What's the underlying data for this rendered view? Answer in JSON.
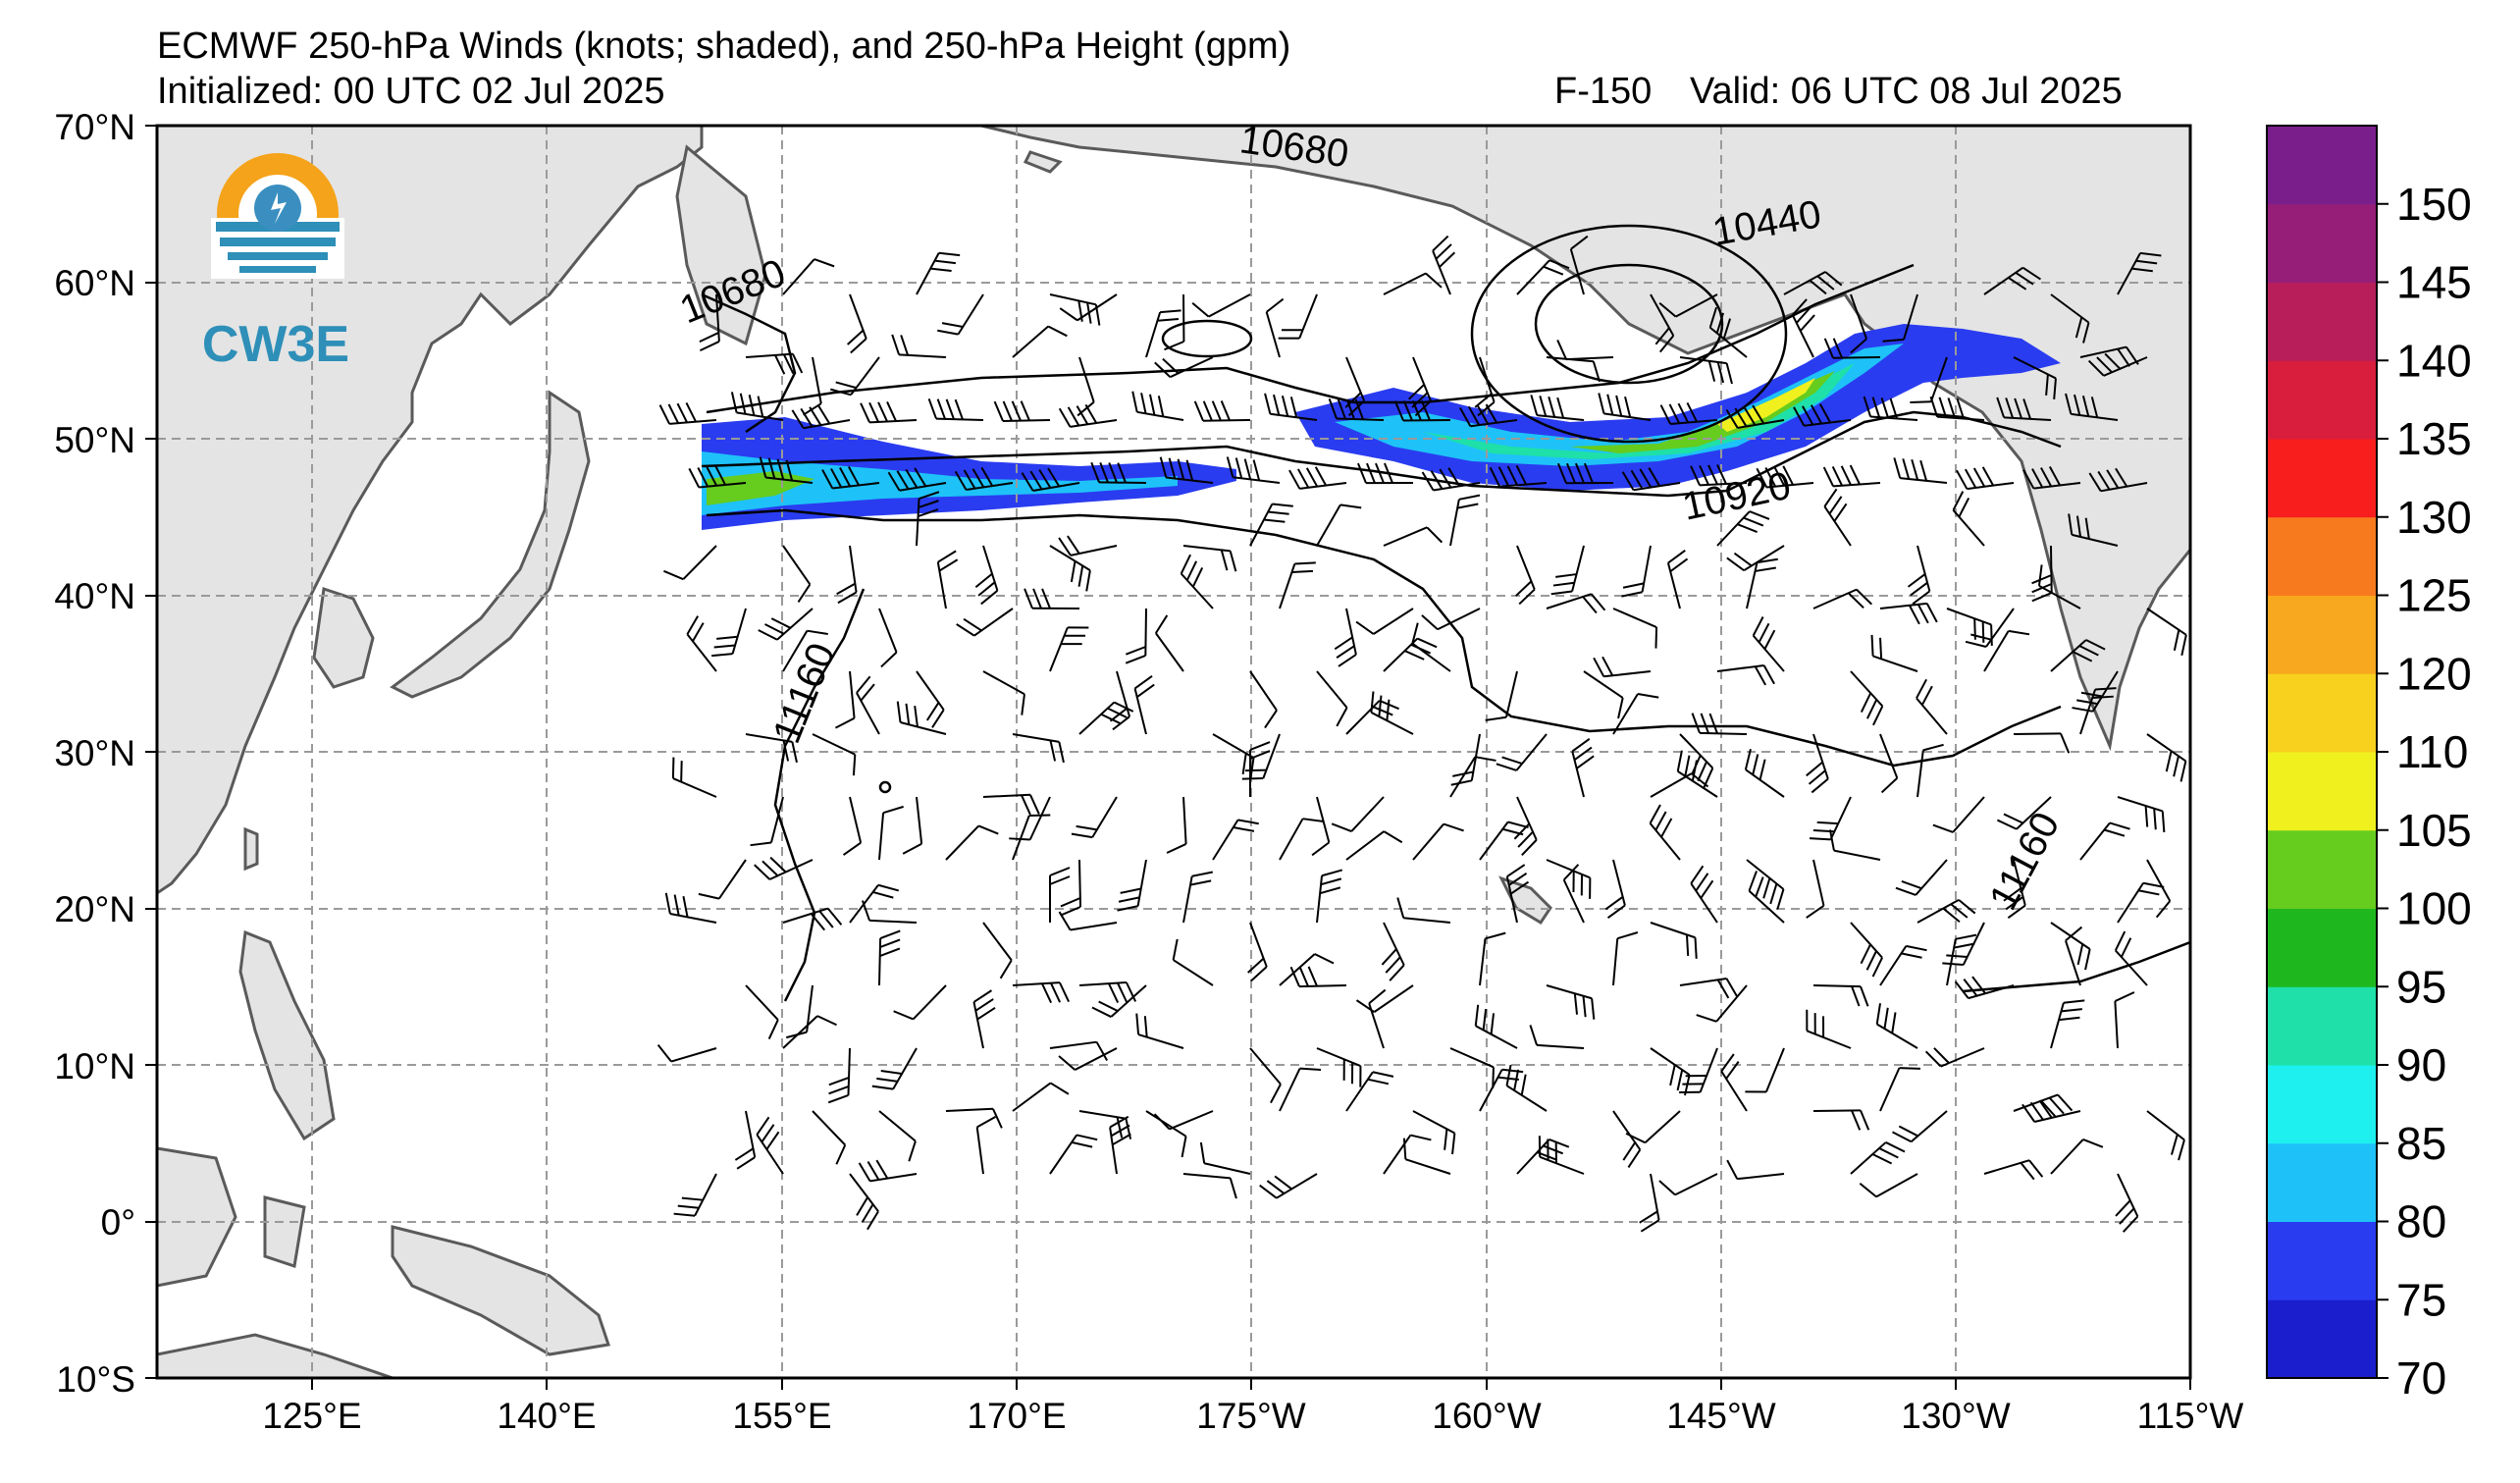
{
  "header": {
    "title": "ECMWF 250-hPa Winds (knots; shaded), and 250-hPa Height (gpm)",
    "initialized": "Initialized: 00 UTC 02 Jul 2025",
    "forecast_hour": "F-150",
    "valid": "Valid: 06 UTC 08 Jul 2025"
  },
  "logo": {
    "text": "CW3E",
    "colors": {
      "ring": "#f5a31a",
      "blue": "#3a8fc0",
      "teal": "#2e8fb8"
    }
  },
  "map": {
    "lon_labels": [
      "125°E",
      "140°E",
      "155°E",
      "170°E",
      "175°W",
      "160°W",
      "145°W",
      "130°W",
      "115°W"
    ],
    "lat_labels": [
      "70°N",
      "60°N",
      "50°N",
      "40°N",
      "30°N",
      "20°N",
      "10°N",
      "0°",
      "10°S"
    ],
    "height_contour_labels": [
      "10680",
      "10680",
      "10440",
      "10920",
      "11160",
      "11160"
    ],
    "land_color": "#e4e4e4",
    "ocean_color": "#ffffff",
    "coast_color": "#555555",
    "grid_style": "dashed gray"
  },
  "colorbar": {
    "tick_labels": [
      "70",
      "75",
      "80",
      "85",
      "90",
      "95",
      "100",
      "105",
      "110",
      "120",
      "125",
      "130",
      "135",
      "140",
      "145",
      "150"
    ],
    "colors": [
      "#1a1ecc",
      "#2a3cf0",
      "#1ec2f8",
      "#1ef0f0",
      "#1ee0a8",
      "#1eb81e",
      "#66cc1e",
      "#f0f01e",
      "#f8d01e",
      "#f8a81e",
      "#f87a1e",
      "#f81e1e",
      "#d81e3c",
      "#b81e5a",
      "#961e78",
      "#7a1e8c"
    ]
  }
}
